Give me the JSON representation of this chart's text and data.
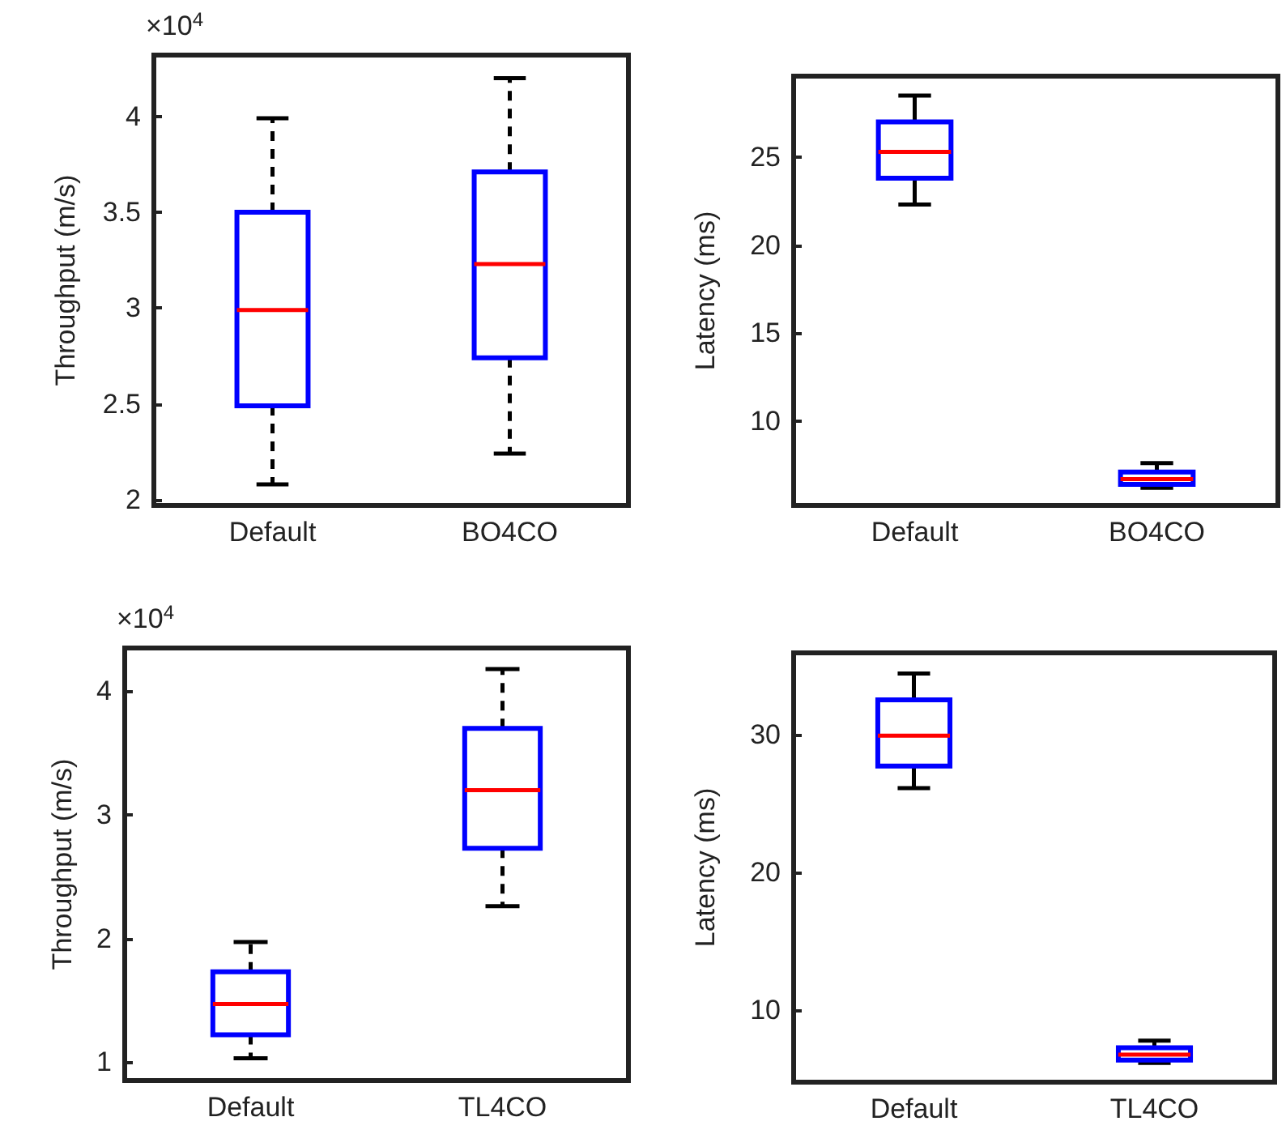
{
  "chart_data": [
    {
      "type": "box",
      "ylabel": "Throughput (m/s)",
      "annotations": [
        "×10$^{4}$"
      ],
      "categories": [
        "Default",
        "BO4CO"
      ],
      "ylim": [
        1.97,
        4.32
      ],
      "yticks": [
        2,
        2.5,
        3,
        3.5,
        4
      ],
      "line_style": "dashed",
      "series": [
        {
          "color": "#0000ff",
          "boxes": [
            {
              "low": 2.08,
              "q1": 2.49,
              "median": 2.99,
              "q3": 3.5,
              "high": 3.99
            },
            {
              "low": 2.24,
              "q1": 2.74,
              "median": 3.23,
              "q3": 3.71,
              "high": 4.2
            }
          ]
        }
      ]
    },
    {
      "type": "box",
      "ylabel": "Latency (ms)",
      "categories": [
        "Default",
        "BO4CO"
      ],
      "ylim": [
        5.2,
        29.6
      ],
      "yticks": [
        10,
        15,
        20,
        25
      ],
      "series": [
        {
          "color": "#0000ff",
          "boxes": [
            {
              "low": 22.3,
              "q1": 23.8,
              "median": 25.3,
              "q3": 27,
              "high": 28.5
            },
            {
              "low": 6.2,
              "q1": 6.4,
              "median": 6.7,
              "q3": 7.1,
              "high": 7.6
            }
          ]
        }
      ]
    },
    {
      "type": "box",
      "ylabel": "Throughput (m/s)",
      "annotations": [
        "×10$^{4}$"
      ],
      "categories": [
        "Default",
        "TL4CO"
      ],
      "ylim": [
        0.85,
        4.35
      ],
      "yticks": [
        1,
        2,
        3,
        4
      ],
      "line_style": "dashed",
      "series": [
        {
          "color": "#0000ff",
          "boxes": [
            {
              "low": 1.03,
              "q1": 1.22,
              "median": 1.47,
              "q3": 1.73,
              "high": 1.97
            },
            {
              "low": 2.26,
              "q1": 2.73,
              "median": 3.2,
              "q3": 3.7,
              "high": 4.18
            }
          ]
        }
      ]
    },
    {
      "type": "box",
      "ylabel": "Latency (ms)",
      "categories": [
        "Default",
        "TL4CO"
      ],
      "ylim": [
        4.8,
        35.9
      ],
      "yticks": [
        10,
        20,
        30
      ],
      "series": [
        {
          "color": "#0000ff",
          "boxes": [
            {
              "low": 26.1,
              "q1": 27.7,
              "median": 29.9,
              "q3": 32.5,
              "high": 34.4
            },
            {
              "low": 6.2,
              "q1": 6.4,
              "median": 6.8,
              "q3": 7.3,
              "high": 7.8
            }
          ]
        }
      ]
    }
  ]
}
